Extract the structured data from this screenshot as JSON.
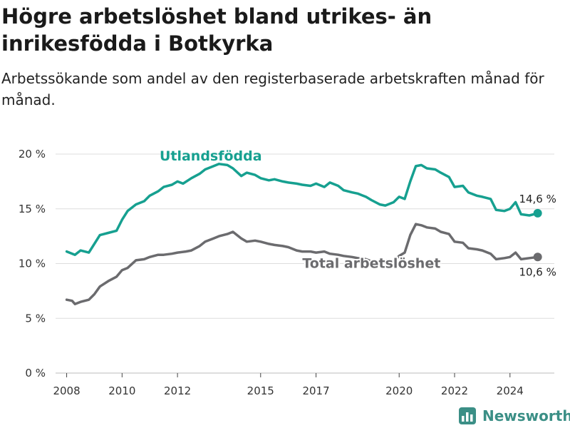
{
  "title": "Högre arbetslöshet bland utrikes- än inrikesfödda i Botkyrka",
  "subtitle": "Arbetssökande som andel av den registerbaserade arbetskraften månad för månad.",
  "brand": "Newsworthy",
  "colors": {
    "foreign": "#16a090",
    "total": "#6b6b6e",
    "grid": "#dddddd",
    "brand": "#3b8f86"
  },
  "chart_data": {
    "type": "line",
    "ylim": [
      0,
      20
    ],
    "xlim": [
      2007.6,
      2025.6
    ],
    "y_ticks": [
      {
        "value": 0,
        "label": "0 %"
      },
      {
        "value": 5,
        "label": "5 %"
      },
      {
        "value": 10,
        "label": "10 %"
      },
      {
        "value": 15,
        "label": "15 %"
      },
      {
        "value": 20,
        "label": "20 %"
      }
    ],
    "x_ticks": [
      {
        "value": 2008,
        "label": "2008"
      },
      {
        "value": 2010,
        "label": "2010"
      },
      {
        "value": 2012,
        "label": "2012"
      },
      {
        "value": 2015,
        "label": "2015"
      },
      {
        "value": 2017,
        "label": "2017"
      },
      {
        "value": 2020,
        "label": "2020"
      },
      {
        "value": 2022,
        "label": "2022"
      },
      {
        "value": 2024,
        "label": "2024"
      }
    ],
    "grid": true,
    "series": [
      {
        "name": "Utlandsfödda",
        "color": "#16a090",
        "end_label": "14,6 %",
        "points": [
          [
            2008.0,
            11.1
          ],
          [
            2008.3,
            10.8
          ],
          [
            2008.5,
            11.2
          ],
          [
            2008.8,
            11.0
          ],
          [
            2009.0,
            11.8
          ],
          [
            2009.2,
            12.6
          ],
          [
            2009.5,
            12.8
          ],
          [
            2009.8,
            13.0
          ],
          [
            2010.0,
            14.0
          ],
          [
            2010.2,
            14.8
          ],
          [
            2010.5,
            15.4
          ],
          [
            2010.8,
            15.7
          ],
          [
            2011.0,
            16.2
          ],
          [
            2011.3,
            16.6
          ],
          [
            2011.5,
            17.0
          ],
          [
            2011.8,
            17.2
          ],
          [
            2012.0,
            17.5
          ],
          [
            2012.2,
            17.3
          ],
          [
            2012.5,
            17.8
          ],
          [
            2012.8,
            18.2
          ],
          [
            2013.0,
            18.6
          ],
          [
            2013.3,
            18.9
          ],
          [
            2013.5,
            19.1
          ],
          [
            2013.8,
            19.0
          ],
          [
            2014.0,
            18.7
          ],
          [
            2014.3,
            18.0
          ],
          [
            2014.5,
            18.3
          ],
          [
            2014.8,
            18.1
          ],
          [
            2015.0,
            17.8
          ],
          [
            2015.3,
            17.6
          ],
          [
            2015.5,
            17.7
          ],
          [
            2015.8,
            17.5
          ],
          [
            2016.0,
            17.4
          ],
          [
            2016.3,
            17.3
          ],
          [
            2016.5,
            17.2
          ],
          [
            2016.8,
            17.1
          ],
          [
            2017.0,
            17.3
          ],
          [
            2017.3,
            17.0
          ],
          [
            2017.5,
            17.4
          ],
          [
            2017.8,
            17.1
          ],
          [
            2018.0,
            16.7
          ],
          [
            2018.3,
            16.5
          ],
          [
            2018.5,
            16.4
          ],
          [
            2018.8,
            16.1
          ],
          [
            2019.0,
            15.8
          ],
          [
            2019.3,
            15.4
          ],
          [
            2019.5,
            15.3
          ],
          [
            2019.8,
            15.6
          ],
          [
            2020.0,
            16.1
          ],
          [
            2020.2,
            15.9
          ],
          [
            2020.4,
            17.5
          ],
          [
            2020.6,
            18.9
          ],
          [
            2020.8,
            19.0
          ],
          [
            2021.0,
            18.7
          ],
          [
            2021.3,
            18.6
          ],
          [
            2021.5,
            18.3
          ],
          [
            2021.8,
            17.9
          ],
          [
            2022.0,
            17.0
          ],
          [
            2022.3,
            17.1
          ],
          [
            2022.5,
            16.5
          ],
          [
            2022.8,
            16.2
          ],
          [
            2023.0,
            16.1
          ],
          [
            2023.3,
            15.9
          ],
          [
            2023.5,
            14.9
          ],
          [
            2023.8,
            14.8
          ],
          [
            2024.0,
            15.0
          ],
          [
            2024.2,
            15.6
          ],
          [
            2024.4,
            14.5
          ],
          [
            2024.7,
            14.4
          ],
          [
            2025.0,
            14.6
          ]
        ]
      },
      {
        "name": "Total arbetslöshet",
        "color": "#6b6b6e",
        "end_label": "10,6 %",
        "points": [
          [
            2008.0,
            6.7
          ],
          [
            2008.2,
            6.6
          ],
          [
            2008.3,
            6.3
          ],
          [
            2008.5,
            6.5
          ],
          [
            2008.8,
            6.7
          ],
          [
            2009.0,
            7.2
          ],
          [
            2009.2,
            7.9
          ],
          [
            2009.5,
            8.4
          ],
          [
            2009.8,
            8.8
          ],
          [
            2010.0,
            9.4
          ],
          [
            2010.2,
            9.6
          ],
          [
            2010.5,
            10.3
          ],
          [
            2010.8,
            10.4
          ],
          [
            2011.0,
            10.6
          ],
          [
            2011.3,
            10.8
          ],
          [
            2011.5,
            10.8
          ],
          [
            2011.8,
            10.9
          ],
          [
            2012.0,
            11.0
          ],
          [
            2012.3,
            11.1
          ],
          [
            2012.5,
            11.2
          ],
          [
            2012.8,
            11.6
          ],
          [
            2013.0,
            12.0
          ],
          [
            2013.3,
            12.3
          ],
          [
            2013.5,
            12.5
          ],
          [
            2013.8,
            12.7
          ],
          [
            2014.0,
            12.9
          ],
          [
            2014.3,
            12.3
          ],
          [
            2014.5,
            12.0
          ],
          [
            2014.8,
            12.1
          ],
          [
            2015.0,
            12.0
          ],
          [
            2015.3,
            11.8
          ],
          [
            2015.5,
            11.7
          ],
          [
            2015.8,
            11.6
          ],
          [
            2016.0,
            11.5
          ],
          [
            2016.3,
            11.2
          ],
          [
            2016.5,
            11.1
          ],
          [
            2016.8,
            11.1
          ],
          [
            2017.0,
            11.0
          ],
          [
            2017.3,
            11.1
          ],
          [
            2017.5,
            10.9
          ],
          [
            2017.8,
            10.8
          ],
          [
            2018.0,
            10.7
          ],
          [
            2018.3,
            10.6
          ],
          [
            2018.5,
            10.5
          ],
          [
            2018.8,
            10.4
          ],
          [
            2019.0,
            10.2
          ],
          [
            2019.3,
            10.1
          ],
          [
            2019.5,
            10.3
          ],
          [
            2019.8,
            10.2
          ],
          [
            2020.0,
            10.7
          ],
          [
            2020.2,
            11.0
          ],
          [
            2020.4,
            12.6
          ],
          [
            2020.6,
            13.6
          ],
          [
            2020.8,
            13.5
          ],
          [
            2021.0,
            13.3
          ],
          [
            2021.3,
            13.2
          ],
          [
            2021.5,
            12.9
          ],
          [
            2021.8,
            12.7
          ],
          [
            2022.0,
            12.0
          ],
          [
            2022.3,
            11.9
          ],
          [
            2022.5,
            11.4
          ],
          [
            2022.8,
            11.3
          ],
          [
            2023.0,
            11.2
          ],
          [
            2023.3,
            10.9
          ],
          [
            2023.5,
            10.4
          ],
          [
            2023.8,
            10.5
          ],
          [
            2024.0,
            10.6
          ],
          [
            2024.2,
            11.0
          ],
          [
            2024.4,
            10.4
          ],
          [
            2024.7,
            10.5
          ],
          [
            2025.0,
            10.6
          ]
        ]
      }
    ]
  }
}
